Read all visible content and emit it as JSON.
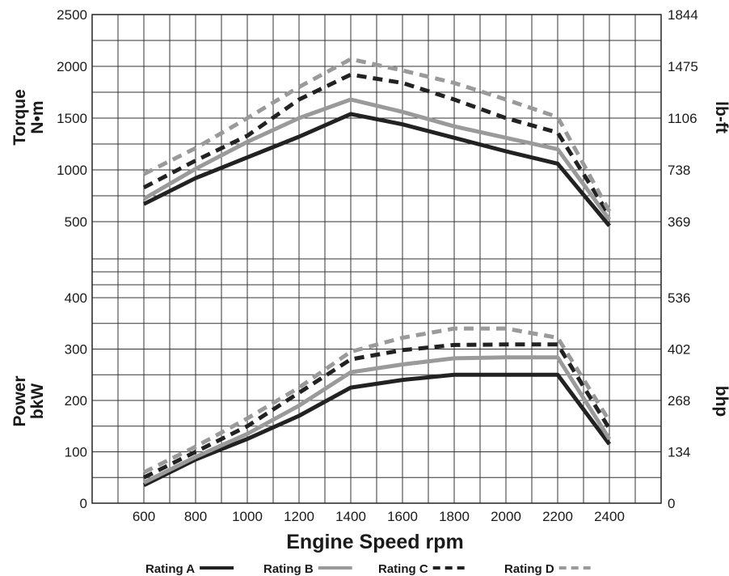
{
  "chart_data": {
    "type": "line",
    "xlabel": "Engine Speed rpm",
    "x_ticks": [
      "600",
      "800",
      "1000",
      "1200",
      "1400",
      "1600",
      "1800",
      "2000",
      "2200",
      "2400"
    ],
    "xlim": [
      400,
      2600
    ],
    "grid": true,
    "legend_position": "bottom",
    "panels": [
      {
        "id": "torque",
        "ylabel_line1": "Torque",
        "ylabel_line2": "N•m",
        "ylim": [
          0,
          2500
        ],
        "y_ticks": [
          "500",
          "1000",
          "1500",
          "2000",
          "2500"
        ],
        "right_label": "lb-ft",
        "right_ticks": [
          "369",
          "738",
          "1106",
          "1475",
          "1844"
        ],
        "series": [
          {
            "name": "Rating A",
            "x": [
              600,
              800,
              1000,
              1200,
              1400,
              1600,
              1800,
              2000,
              2200,
              2400
            ],
            "y": [
              670,
              920,
              1120,
              1320,
              1540,
              1440,
              1310,
              1180,
              1060,
              460
            ]
          },
          {
            "name": "Rating B",
            "x": [
              600,
              800,
              1000,
              1200,
              1400,
              1600,
              1800,
              2000,
              2200,
              2400
            ],
            "y": [
              720,
              1010,
              1270,
              1500,
              1680,
              1560,
              1420,
              1310,
              1200,
              520
            ]
          },
          {
            "name": "Rating C",
            "x": [
              600,
              800,
              1000,
              1200,
              1400,
              1600,
              1800,
              2000,
              2200,
              2400
            ],
            "y": [
              830,
              1090,
              1330,
              1680,
              1920,
              1840,
              1680,
              1500,
              1360,
              560
            ]
          },
          {
            "name": "Rating D",
            "x": [
              600,
              800,
              1000,
              1200,
              1400,
              1600,
              1800,
              2000,
              2200,
              2400
            ],
            "y": [
              960,
              1210,
              1500,
              1800,
              2070,
              1960,
              1840,
              1680,
              1510,
              600
            ]
          }
        ]
      },
      {
        "id": "power",
        "ylabel_line1": "Power",
        "ylabel_line2": "bkW",
        "ylim": [
          0,
          400
        ],
        "y_ticks": [
          "0",
          "100",
          "200",
          "300",
          "400"
        ],
        "right_label": "bhp",
        "right_ticks": [
          "0",
          "134",
          "268",
          "402",
          "536"
        ],
        "series": [
          {
            "name": "Rating A",
            "x": [
              600,
              800,
              1000,
              1200,
              1400,
              1600,
              1800,
              2000,
              2200,
              2400
            ],
            "y": [
              35,
              85,
              125,
              170,
              225,
              240,
              250,
              250,
              250,
              115
            ]
          },
          {
            "name": "Rating B",
            "x": [
              600,
              800,
              1000,
              1200,
              1400,
              1600,
              1800,
              2000,
              2200,
              2400
            ],
            "y": [
              40,
              90,
              135,
              190,
              255,
              270,
              282,
              284,
              284,
              125
            ]
          },
          {
            "name": "Rating C",
            "x": [
              600,
              800,
              1000,
              1200,
              1400,
              1600,
              1800,
              2000,
              2200,
              2400
            ],
            "y": [
              50,
              100,
              150,
              215,
              280,
              298,
              308,
              309,
              309,
              145
            ]
          },
          {
            "name": "Rating D",
            "x": [
              600,
              800,
              1000,
              1200,
              1400,
              1600,
              1800,
              2000,
              2200,
              2400
            ],
            "y": [
              60,
              110,
              165,
              225,
              295,
              322,
              340,
              340,
              322,
              160
            ]
          }
        ]
      }
    ],
    "legend": [
      {
        "label": "Rating A",
        "color": "#222222",
        "dashed": false
      },
      {
        "label": "Rating B",
        "color": "#9a9a9a",
        "dashed": false
      },
      {
        "label": "Rating C",
        "color": "#222222",
        "dashed": true
      },
      {
        "label": "Rating D",
        "color": "#9a9a9a",
        "dashed": true
      }
    ]
  }
}
